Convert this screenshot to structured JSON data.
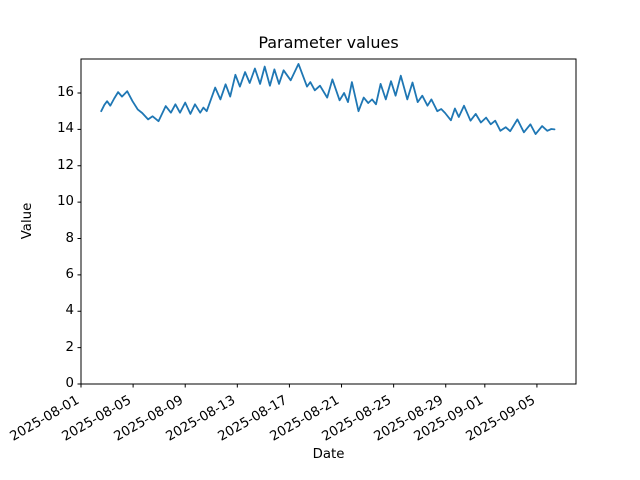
{
  "chart_data": {
    "type": "line",
    "title": "Parameter values",
    "xlabel": "Date",
    "ylabel": "Value",
    "grid": false,
    "legend": null,
    "line_color": "#1f77b4",
    "axes_color": "#000000",
    "background_color": "#ffffff",
    "x_axis": {
      "epoch_date": "2025-08-01",
      "tick_labels": [
        "2025-08-01",
        "2025-08-05",
        "2025-08-09",
        "2025-08-13",
        "2025-08-17",
        "2025-08-21",
        "2025-08-25",
        "2025-08-29",
        "2025-09-01",
        "2025-09-05"
      ],
      "tick_days": [
        0,
        4,
        8,
        12,
        16,
        20,
        24,
        28,
        31,
        35
      ],
      "tick_rotation_deg": 30,
      "xlim_days": [
        0,
        38
      ]
    },
    "y_axis": {
      "tick_labels": [
        "0",
        "2",
        "4",
        "6",
        "8",
        "10",
        "12",
        "14",
        "16"
      ],
      "tick_values": [
        0,
        2,
        4,
        6,
        8,
        10,
        12,
        14,
        16
      ],
      "ylim": [
        0,
        17.87
      ]
    },
    "series": [
      {
        "name": "parameter-values",
        "t_days_since_epoch": [
          1.55,
          1.8,
          2.0,
          2.25,
          2.55,
          2.85,
          3.15,
          3.55,
          3.95,
          4.35,
          4.7,
          5.15,
          5.5,
          5.95,
          6.5,
          6.9,
          7.25,
          7.6,
          8.0,
          8.4,
          8.75,
          9.15,
          9.4,
          9.65,
          10.3,
          10.7,
          11.1,
          11.45,
          11.85,
          12.2,
          12.6,
          12.95,
          13.35,
          13.75,
          14.1,
          14.5,
          14.85,
          15.2,
          15.55,
          16.1,
          16.7,
          17.35,
          17.6,
          17.95,
          18.35,
          18.9,
          19.3,
          19.85,
          20.2,
          20.5,
          20.8,
          21.3,
          21.7,
          22.05,
          22.35,
          22.65,
          23.0,
          23.4,
          23.8,
          24.15,
          24.55,
          25.05,
          25.45,
          25.85,
          26.2,
          26.6,
          26.9,
          27.35,
          27.65,
          27.95,
          28.4,
          28.7,
          29.0,
          29.4,
          29.9,
          30.3,
          30.7,
          31.1,
          31.45,
          31.8,
          32.2,
          32.6,
          32.95,
          33.5,
          34.0,
          34.5,
          34.9,
          35.4,
          35.8,
          36.1,
          36.35
        ],
        "values": [
          15.0,
          15.35,
          15.55,
          15.3,
          15.7,
          16.05,
          15.8,
          16.1,
          15.55,
          15.1,
          14.9,
          14.55,
          14.72,
          14.45,
          15.28,
          14.92,
          15.38,
          14.92,
          15.47,
          14.85,
          15.38,
          14.92,
          15.2,
          15.0,
          16.3,
          15.65,
          16.48,
          15.8,
          17.0,
          16.35,
          17.15,
          16.55,
          17.35,
          16.5,
          17.45,
          16.4,
          17.3,
          16.5,
          17.25,
          16.7,
          17.6,
          16.35,
          16.6,
          16.15,
          16.4,
          15.75,
          16.75,
          15.6,
          16.0,
          15.5,
          16.6,
          15.0,
          15.75,
          15.45,
          15.65,
          15.38,
          16.5,
          15.65,
          16.65,
          15.85,
          16.95,
          15.65,
          16.58,
          15.5,
          15.85,
          15.3,
          15.65,
          15.0,
          15.12,
          14.9,
          14.5,
          15.15,
          14.68,
          15.3,
          14.48,
          14.85,
          14.38,
          14.65,
          14.28,
          14.48,
          13.92,
          14.12,
          13.9,
          14.55,
          13.84,
          14.28,
          13.74,
          14.18,
          13.92,
          14.02,
          14.0
        ]
      }
    ]
  }
}
